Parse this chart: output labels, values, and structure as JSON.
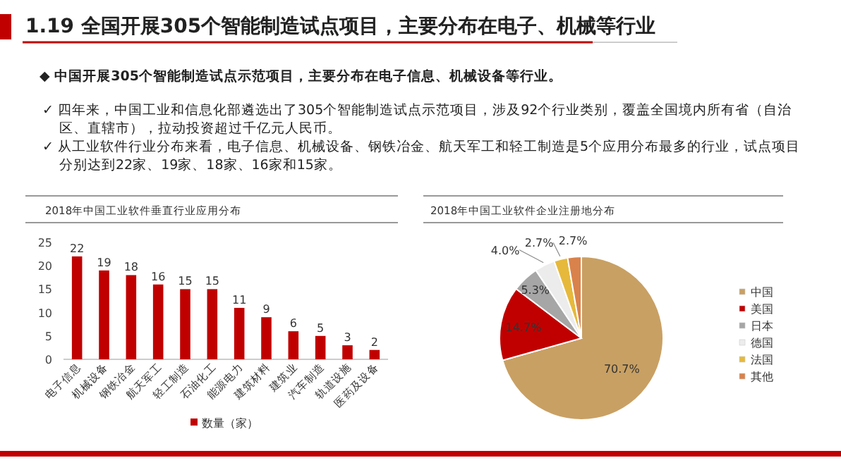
{
  "chart_data": [
    {
      "type": "bar",
      "title": "2018年中国工业软件垂直行业应用分布",
      "annotations": [
        "1.19 全国开展305个智能制造试点项目，主要分布在电子、机械等行业",
        "◆ 中国开展305个智能制造试点示范项目，主要分布在电子信息、机械设备等行业。",
        "✓ 四年来，中国工业和信息化部遴选出了305个智能制造试点示范项目，涉及92个行业类别，覆盖全国境内所有省（自治区、直辖市），拉动投资超过千亿元人民币。",
        "✓ 从工业软件行业分布来看，电子信息、机械设备、钢铁冶金、航天军工和轻工制造是5个应用分布最多的行业，试点项目分别达到22家、19家、18家、16家和15家。"
      ],
      "categories": [
        "电子信息",
        "机械设备",
        "钢铁冶金",
        "航天军工",
        "轻工制造",
        "石油化工",
        "能源电力",
        "建筑材料",
        "建筑业",
        "汽车制造",
        "轨道设施",
        "医药及设备"
      ],
      "series": [
        {
          "name": "数量（家）",
          "color": "#c00000",
          "values": [
            22,
            19,
            18,
            16,
            15,
            15,
            11,
            9,
            6,
            5,
            3,
            2
          ]
        }
      ],
      "ylim": [
        0,
        25
      ],
      "yticks": [
        0,
        5,
        10,
        15,
        20,
        25
      ],
      "data_labels": true,
      "legend": "bottom"
    },
    {
      "type": "pie",
      "title": "2018年中国工业软件企业注册地分布",
      "categories": [
        "中国",
        "美国",
        "日本",
        "德国",
        "法国",
        "其他"
      ],
      "values": [
        70.7,
        14.7,
        5.3,
        4.0,
        2.7,
        2.7
      ],
      "value_labels": [
        "70.7%",
        "14.7%",
        "5.3%",
        "4.0%",
        "2.7%",
        "2.7%"
      ],
      "colors": [
        "#c9a063",
        "#c00000",
        "#a6a6a6",
        "#ececec",
        "#e6b93c",
        "#d9824b"
      ],
      "legend": "right"
    }
  ]
}
